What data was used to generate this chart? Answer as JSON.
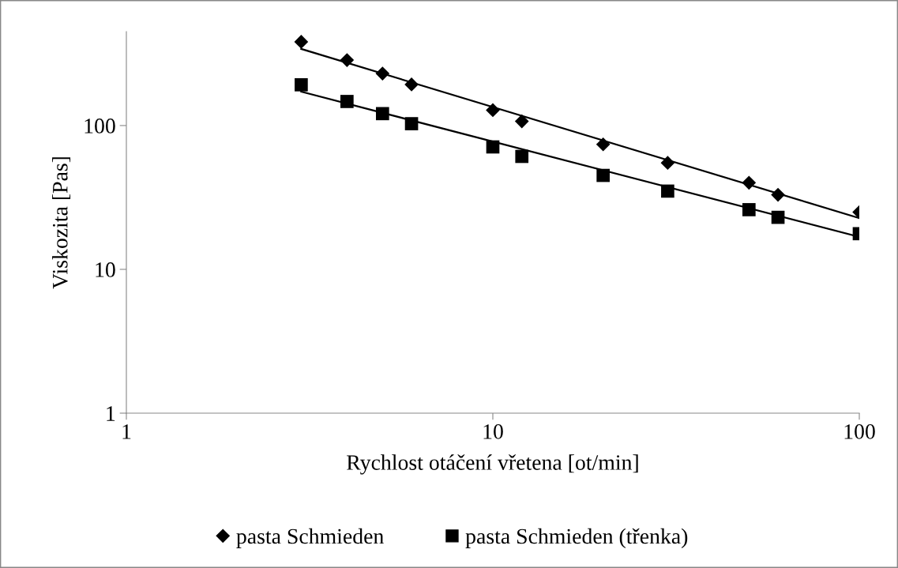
{
  "chart_data": {
    "type": "scatter",
    "xlabel": "Rychlost otáčení vřetena [ot/min]",
    "ylabel": "Viskozita [Pas]",
    "log": "xy",
    "xlim": [
      1,
      100
    ],
    "xticks": [
      1,
      10,
      100
    ],
    "ylim": [
      1,
      450
    ],
    "yticks": [
      1,
      10,
      100
    ],
    "grid": false,
    "legend": "bottom",
    "series": [
      {
        "name": "pasta Schmieden",
        "color": "#000000",
        "marker": "diamond",
        "x": [
          3,
          4,
          5,
          6,
          10,
          12,
          20,
          30,
          50,
          60,
          100
        ],
        "values": [
          382,
          285,
          230,
          193,
          128,
          107,
          74,
          55,
          40,
          33,
          25
        ]
      },
      {
        "name": "pasta Schmieden (třenka)",
        "color": "#000000",
        "marker": "square",
        "x": [
          3,
          4,
          5,
          6,
          10,
          12,
          20,
          30,
          50,
          60,
          100
        ],
        "values": [
          192,
          147,
          121,
          103,
          71,
          61,
          45,
          35,
          26,
          23,
          17.7
        ]
      },
      {
        "type": "line",
        "color": "#000000",
        "marker": "none",
        "line_style": "solid",
        "x": [
          3,
          100
        ],
        "values": [
          341,
          22.7
        ]
      },
      {
        "type": "line",
        "color": "#000000",
        "marker": "none",
        "line_style": "solid",
        "x": [
          3,
          100
        ],
        "values": [
          172,
          16.8
        ]
      }
    ]
  }
}
